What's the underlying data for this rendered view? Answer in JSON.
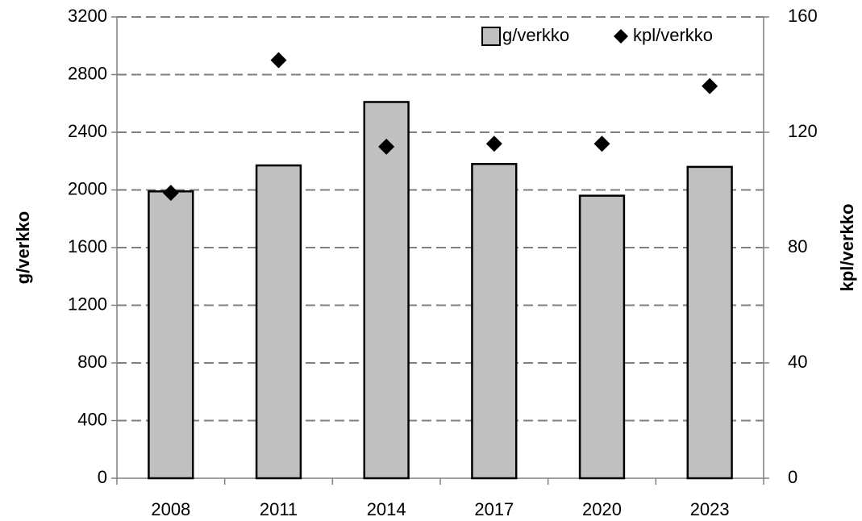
{
  "chart_data": {
    "type": "bar",
    "categories": [
      "2008",
      "2011",
      "2014",
      "2017",
      "2020",
      "2023"
    ],
    "series": [
      {
        "name": "g/verkko",
        "color": "#c0c0c0",
        "values": [
          1990,
          2170,
          2610,
          2180,
          1960,
          2160
        ]
      },
      {
        "name": "kpl/verkko",
        "color": "#000000",
        "axis": "y2",
        "values": [
          99,
          145,
          115,
          116,
          116,
          136
        ]
      }
    ],
    "ylabel": "g/verkko",
    "y2label": "kpl/verkko",
    "ylim": [
      0,
      3200
    ],
    "yticks": [
      0,
      400,
      800,
      1200,
      1600,
      2000,
      2400,
      2800,
      3200
    ],
    "y2lim": [
      0,
      160
    ],
    "y2ticks": [
      0,
      40,
      80,
      120,
      160
    ],
    "grid": true,
    "legend": "top-right"
  }
}
